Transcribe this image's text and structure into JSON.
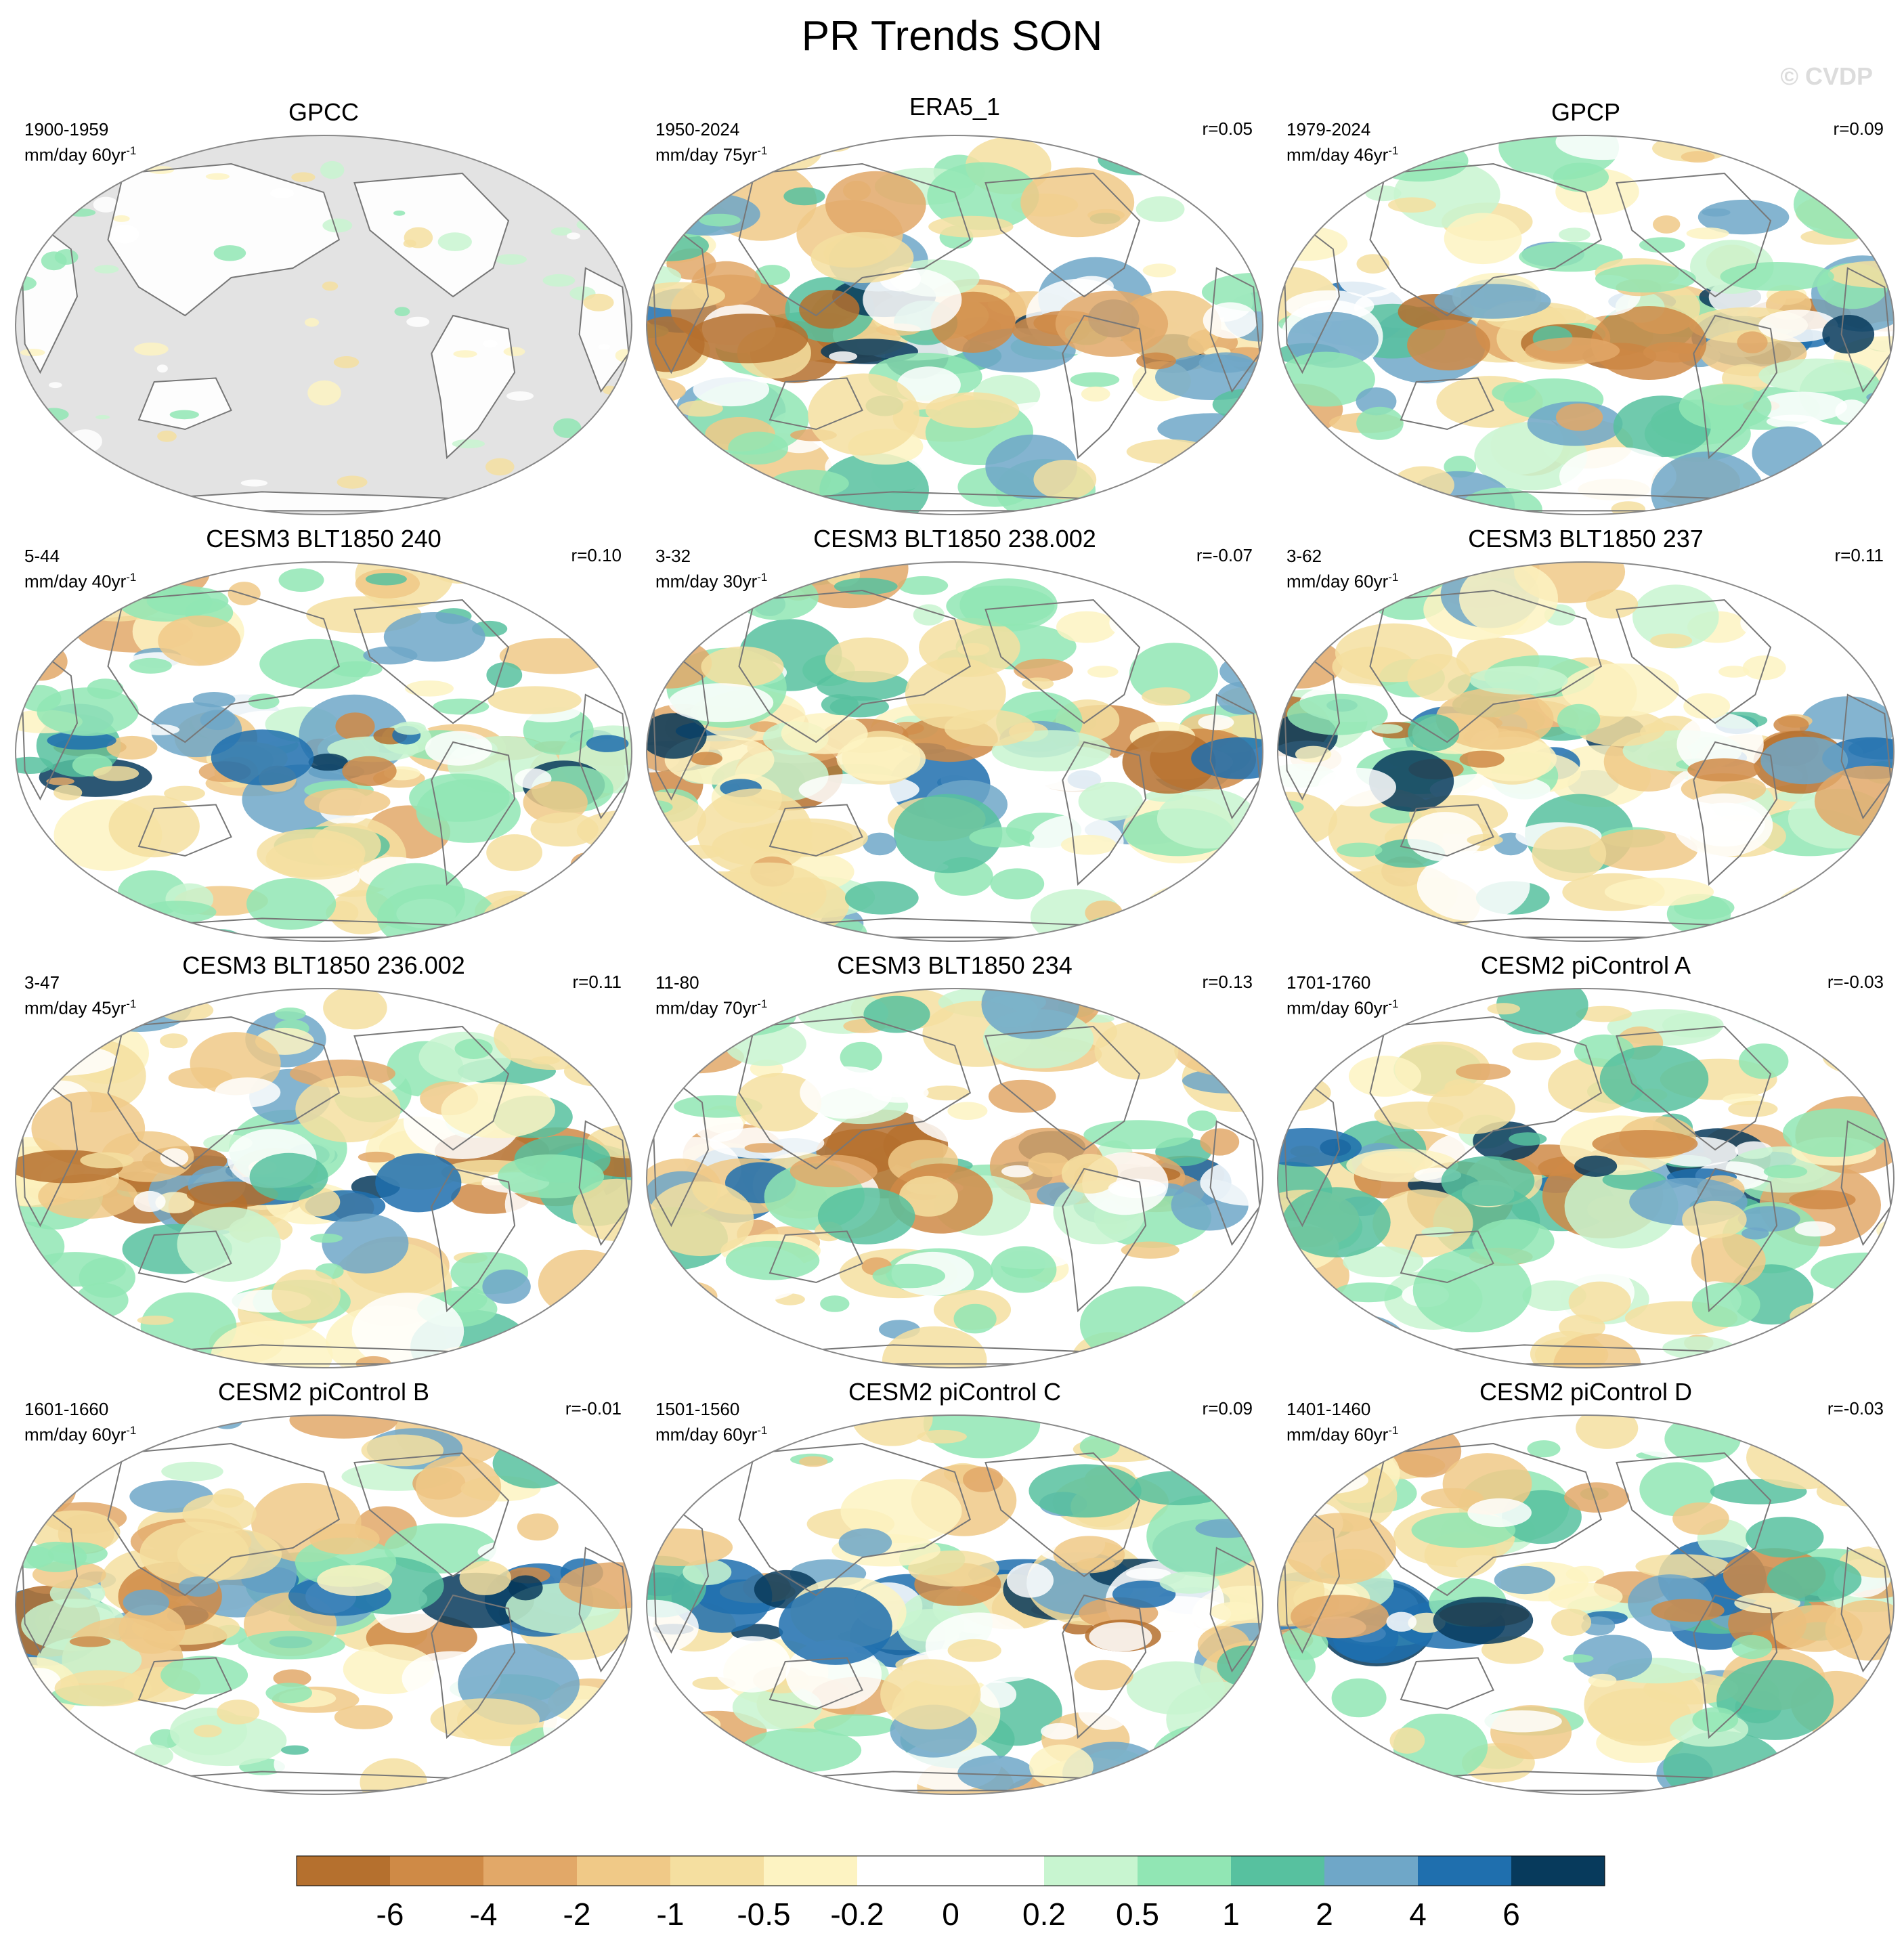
{
  "title": "PR Trends SON",
  "watermark": "© CVDP",
  "panels": [
    {
      "title": "GPCC",
      "period": "1900-1959",
      "units": "mm/day 60yr",
      "units_exp": "-1",
      "r": "",
      "land_only": true
    },
    {
      "title": "ERA5_1",
      "period": "1950-2024",
      "units": "mm/day 75yr",
      "units_exp": "-1",
      "r": "r=0.05",
      "land_only": false
    },
    {
      "title": "GPCP",
      "period": "1979-2024",
      "units": "mm/day 46yr",
      "units_exp": "-1",
      "r": "r=0.09",
      "land_only": false
    },
    {
      "title": "CESM3 BLT1850 240",
      "period": "5-44",
      "units": "mm/day 40yr",
      "units_exp": "-1",
      "r": "r=0.10",
      "land_only": false
    },
    {
      "title": "CESM3 BLT1850 238.002",
      "period": "3-32",
      "units": "mm/day 30yr",
      "units_exp": "-1",
      "r": "r=-0.07",
      "land_only": false
    },
    {
      "title": "CESM3 BLT1850 237",
      "period": "3-62",
      "units": "mm/day 60yr",
      "units_exp": "-1",
      "r": "r=0.11",
      "land_only": false
    },
    {
      "title": "CESM3 BLT1850 236.002",
      "period": "3-47",
      "units": "mm/day 45yr",
      "units_exp": "-1",
      "r": "r=0.11",
      "land_only": false
    },
    {
      "title": "CESM3 BLT1850 234",
      "period": "11-80",
      "units": "mm/day 70yr",
      "units_exp": "-1",
      "r": "r=0.13",
      "land_only": false
    },
    {
      "title": "CESM2 piControl A",
      "period": "1701-1760",
      "units": "mm/day 60yr",
      "units_exp": "-1",
      "r": "r=-0.03",
      "land_only": false
    },
    {
      "title": "CESM2 piControl B",
      "period": "1601-1660",
      "units": "mm/day 60yr",
      "units_exp": "-1",
      "r": "r=-0.01",
      "land_only": false
    },
    {
      "title": "CESM2 piControl C",
      "period": "1501-1560",
      "units": "mm/day 60yr",
      "units_exp": "-1",
      "r": "r=0.09",
      "land_only": false
    },
    {
      "title": "CESM2 piControl D",
      "period": "1401-1460",
      "units": "mm/day 60yr",
      "units_exp": "-1",
      "r": "r=-0.03",
      "land_only": false
    }
  ],
  "colorbar": {
    "colors": [
      "#b5702e",
      "#cf8a46",
      "#e2a868",
      "#f0c987",
      "#f5dfa0",
      "#fdf3c2",
      "#ffffff",
      "#ffffff",
      "#c8f5d0",
      "#91e6b4",
      "#57c19f",
      "#6fa7c8",
      "#1f6fae",
      "#073a5c"
    ],
    "labels": [
      "-6",
      "-4",
      "-2",
      "-1",
      "-0.5",
      "-0.2",
      "0",
      "0.2",
      "0.5",
      "1",
      "2",
      "4",
      "6"
    ]
  },
  "colors": {
    "land_mask": "#e3e3e3",
    "coast": "#777777",
    "outline": "#888888"
  }
}
